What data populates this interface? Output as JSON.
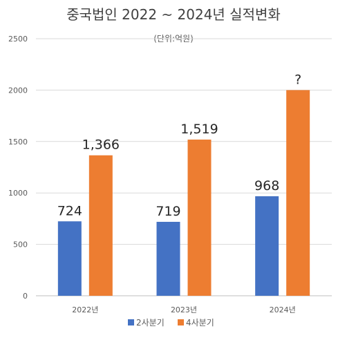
{
  "chart_data": {
    "type": "bar",
    "title": "중국법인 2022 ~ 2024년 실적변화",
    "subtitle": "(단위:억원)",
    "categories": [
      "2022년",
      "2023년",
      "2024년"
    ],
    "series": [
      {
        "name": "2사분기",
        "values": [
          724,
          719,
          968
        ],
        "data_labels": [
          "724",
          "719",
          "968"
        ],
        "color": "#4472c4"
      },
      {
        "name": "4사분기",
        "values": [
          1366,
          1519,
          2000
        ],
        "data_labels": [
          "1,366",
          "1,519",
          "?"
        ],
        "color": "#ed7d31"
      }
    ],
    "ylim": [
      0,
      2500
    ],
    "yticks": [
      "0",
      "500",
      "1000",
      "1500",
      "2000",
      "2500"
    ],
    "grid": true,
    "legend_position": "bottom"
  }
}
